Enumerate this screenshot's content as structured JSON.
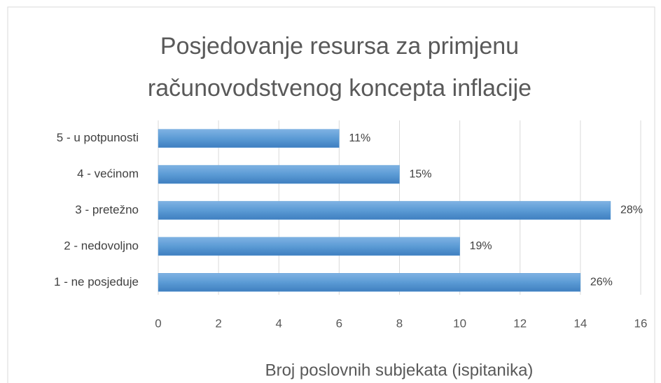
{
  "chart_data": {
    "type": "barh",
    "title": [
      "Posjedovanje resursa za primjenu",
      "računovodstvenog koncepta inflacije"
    ],
    "x_label": "Broj poslovnih subjekata (ispitanika)",
    "categories": [
      "5 - u potpunosti",
      "4 - većinom",
      "3 - pretežno",
      "2 - nedovoljno",
      "1 - ne posjeduje"
    ],
    "values": [
      6,
      8,
      15,
      10,
      14
    ],
    "data_labels": [
      "11%",
      "15%",
      "28%",
      "19%",
      "26%"
    ],
    "color": "#5b9bd5",
    "xlim": [
      0,
      16
    ],
    "xticks": [
      0,
      2,
      4,
      6,
      8,
      10,
      12,
      14,
      16
    ],
    "grid": true
  }
}
